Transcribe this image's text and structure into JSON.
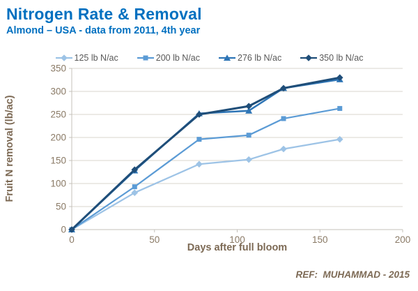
{
  "header": {
    "title": "Nitrogen Rate & Removal",
    "subtitle": "Almond – USA - data from 2011, 4th year"
  },
  "footer": {
    "reference": "REF:  MUHAMMAD - 2015"
  },
  "colors": {
    "title": "#0070C0",
    "subtitle": "#0070C0",
    "legend_text": "#595959",
    "tick_text": "#8A7A66",
    "axis_label": "#7D6A55",
    "ref_text": "#7D6A55",
    "gridline": "#D8D4CE",
    "axis_line": "#C4C0BA"
  },
  "chart_data": {
    "type": "line",
    "title": "Nitrogen Rate & Removal",
    "subtitle": "Almond – USA - data from 2011, 4th year",
    "xlabel": "Days after full bloom",
    "ylabel": "Fruit N removal (lb/ac)",
    "xlim": [
      0,
      200
    ],
    "ylim": [
      0,
      350
    ],
    "x_ticks": [
      0,
      50,
      100,
      150,
      200
    ],
    "y_ticks": [
      0,
      50,
      100,
      150,
      200,
      250,
      300,
      350
    ],
    "grid": "horizontal",
    "legend_position": "top",
    "x": [
      0,
      38,
      77,
      107,
      128,
      162
    ],
    "series": [
      {
        "name": "125 lb N/ac",
        "color": "#9DC3E6",
        "marker": "diamond",
        "line_width": 2.25,
        "values": [
          0,
          80,
          142,
          152,
          175,
          196
        ]
      },
      {
        "name": "200 lb N/ac",
        "color": "#5B9BD5",
        "marker": "square",
        "line_width": 2.25,
        "values": [
          0,
          93,
          196,
          205,
          241,
          263
        ]
      },
      {
        "name": "276 lb N/ac",
        "color": "#2E75B6",
        "marker": "triangle",
        "line_width": 2.5,
        "values": [
          0,
          128,
          252,
          258,
          307,
          326
        ]
      },
      {
        "name": "350 lb N/ac",
        "color": "#1F4E79",
        "marker": "diamond",
        "line_width": 3,
        "values": [
          0,
          130,
          250,
          268,
          307,
          330
        ]
      }
    ]
  }
}
